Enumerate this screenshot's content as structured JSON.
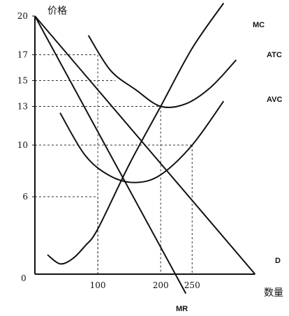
{
  "chart_data": {
    "type": "line",
    "title": "",
    "xlabel": "数量",
    "ylabel": "价格",
    "xlim": [
      0,
      350
    ],
    "ylim": [
      0,
      20
    ],
    "origin_label": "0",
    "y_ticks": [
      {
        "value": 20,
        "label": "20"
      },
      {
        "value": 17,
        "label": "17"
      },
      {
        "value": 15,
        "label": "15"
      },
      {
        "value": 13,
        "label": "13"
      },
      {
        "value": 10,
        "label": "10"
      },
      {
        "value": 6,
        "label": "6"
      }
    ],
    "x_ticks": [
      {
        "value": 100,
        "label": "100"
      },
      {
        "value": 200,
        "label": "200"
      },
      {
        "value": 250,
        "label": "250"
      }
    ],
    "guides": [
      {
        "x": 100,
        "y": 17
      },
      {
        "x": 100,
        "y": 6
      },
      {
        "x": 200,
        "y": 13
      },
      {
        "x": 250,
        "y": 10
      },
      {
        "x": 0,
        "y": 15
      }
    ],
    "series": [
      {
        "name": "D",
        "type": "line",
        "x": [
          0,
          350
        ],
        "y": [
          20,
          0
        ]
      },
      {
        "name": "MR",
        "type": "line",
        "x": [
          0,
          240
        ],
        "y": [
          20,
          -1.5
        ]
      },
      {
        "name": "MC",
        "type": "smooth",
        "x": [
          20,
          40,
          60,
          80,
          100,
          150,
          200,
          250,
          300
        ],
        "y": [
          1.5,
          0.8,
          1.2,
          2.2,
          3.5,
          8.5,
          13,
          17.5,
          21
        ]
      },
      {
        "name": "ATC",
        "type": "smooth",
        "x": [
          85,
          120,
          160,
          200,
          240,
          280,
          320
        ],
        "y": [
          18.5,
          15.8,
          14.3,
          13,
          13.2,
          14.5,
          16.6
        ]
      },
      {
        "name": "AVC",
        "type": "smooth",
        "x": [
          40,
          80,
          120,
          160,
          200,
          250,
          300
        ],
        "y": [
          12.5,
          9.2,
          7.6,
          7.1,
          7.7,
          10,
          13.4
        ]
      }
    ]
  }
}
